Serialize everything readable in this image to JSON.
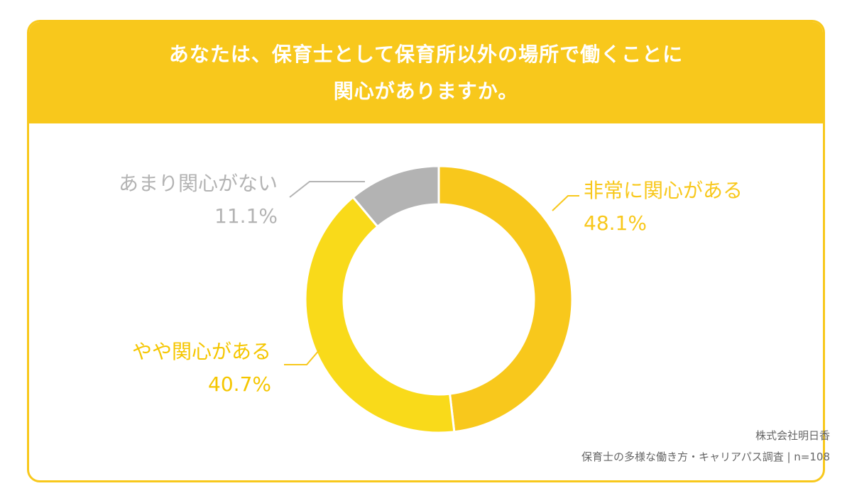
{
  "title": {
    "line1": "あなたは、保育士として保育所以外の場所で働くことに",
    "line2": "関心がありますか。"
  },
  "chart_data": {
    "type": "pie",
    "donut": true,
    "slices": [
      {
        "label": "非常に関心がある",
        "value": 48.1,
        "value_label": "48.1%",
        "color": "#f8c81c"
      },
      {
        "label": "やや関心がある",
        "value": 40.7,
        "value_label": "40.7%",
        "color": "#f9da1a"
      },
      {
        "label": "あまり関心がない",
        "value": 11.1,
        "value_label": "11.1%",
        "color": "#b3b3b3"
      }
    ]
  },
  "source": {
    "company": "株式会社明日香",
    "survey": "保育士の多様な働き方・キャリアパス調査 | n=108"
  },
  "colors": {
    "accent": "#f8c81c",
    "label_yellow": "#f8c81c",
    "label_yellow2": "#f5c600",
    "label_gray": "#b3b3b3"
  }
}
